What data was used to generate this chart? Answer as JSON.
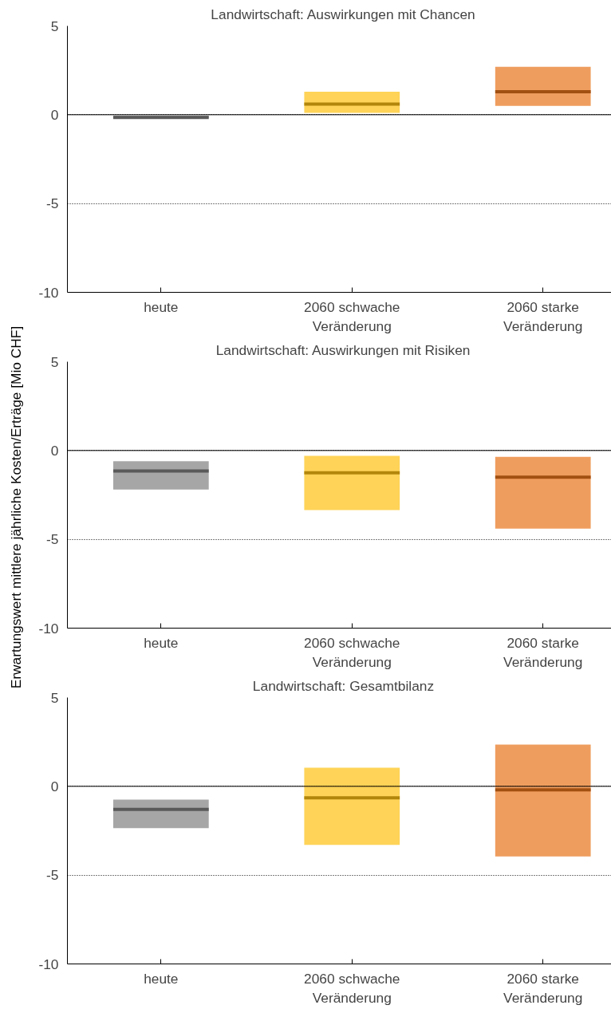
{
  "chart_data": [
    {
      "type": "box",
      "title": "Landwirtschaft: Auswirkungen mit Chancen",
      "categories": [
        "heute",
        "2060 schwache\nVeränderung",
        "2060 starke\nVeränderung"
      ],
      "boxes": [
        {
          "low": -0.2,
          "q1": -0.2,
          "median": -0.15,
          "q3": -0.05,
          "high": -0.05
        },
        {
          "low": 0.1,
          "q1": 0.1,
          "median": 0.6,
          "q3": 1.3,
          "high": 1.3
        },
        {
          "low": 0.5,
          "q1": 0.5,
          "median": 1.3,
          "q3": 2.7,
          "high": 2.7
        }
      ],
      "colors": [
        "#808080",
        "#fdc010",
        "#e8731a"
      ],
      "ylim": [
        -10,
        5
      ],
      "yticks": [
        -10,
        -5,
        0,
        5
      ],
      "grid": "y",
      "ref_lines": [
        {
          "axis": "y",
          "value": 0,
          "color": "#000000"
        }
      ]
    },
    {
      "type": "box",
      "title": "Landwirtschaft: Auswirkungen mit Risiken",
      "ylabel": "Erwartungswert mittlere jährliche Kosten/Erträge [Mio CHF]",
      "categories": [
        "heute",
        "2060 schwache\nVeränderung",
        "2060 starke\nVeränderung"
      ],
      "boxes": [
        {
          "low": -2.2,
          "q1": -2.2,
          "median": -1.15,
          "q3": -0.6,
          "high": -0.6
        },
        {
          "low": -3.35,
          "q1": -3.35,
          "median": -1.25,
          "q3": -0.3,
          "high": -0.3
        },
        {
          "low": -4.4,
          "q1": -4.4,
          "median": -1.5,
          "q3": -0.35,
          "high": -0.35
        }
      ],
      "colors": [
        "#808080",
        "#fdc010",
        "#e8731a"
      ],
      "ylim": [
        -10,
        5
      ],
      "yticks": [
        -10,
        -5,
        0,
        5
      ],
      "grid": "y",
      "ref_lines": [
        {
          "axis": "y",
          "value": 0,
          "color": "#000000"
        }
      ]
    },
    {
      "type": "box",
      "title": "Landwirtschaft: Gesamtbilanz",
      "categories": [
        "heute",
        "2060 schwache\nVeränderung",
        "2060 starke\nVeränderung"
      ],
      "boxes": [
        {
          "low": -2.35,
          "q1": -2.35,
          "median": -1.3,
          "q3": -0.75,
          "high": -0.75
        },
        {
          "low": -3.3,
          "q1": -3.3,
          "median": -0.65,
          "q3": 1.05,
          "high": 1.05
        },
        {
          "low": -3.95,
          "q1": -3.95,
          "median": -0.2,
          "q3": 2.35,
          "high": 2.35
        }
      ],
      "colors": [
        "#808080",
        "#fdc010",
        "#e8731a"
      ],
      "ylim": [
        -10,
        5
      ],
      "yticks": [
        -10,
        -5,
        0,
        5
      ],
      "grid": "y",
      "ref_lines": [
        {
          "axis": "y",
          "value": 0,
          "color": "#000000"
        }
      ]
    }
  ]
}
